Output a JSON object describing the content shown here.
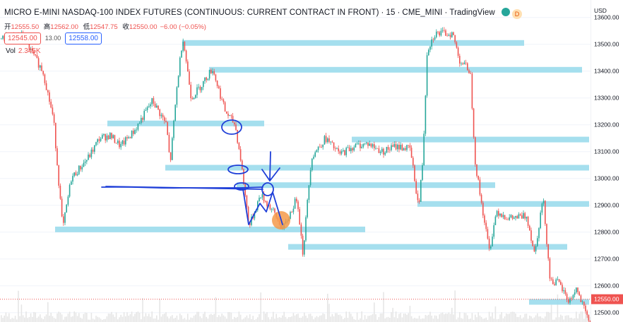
{
  "header": {
    "symbol_name": "MICRO E-MINI NASDAQ-100 INDEX FUTURES (CONTINUOUS: CURRENT CONTRACT IN FRONT)",
    "interval": "15",
    "exchange": "CME_MINI",
    "source": "TradingView",
    "status_badge": "D"
  },
  "ohlc": {
    "open_label": "开",
    "open": "12555.50",
    "high_label": "高",
    "high": "12562.00",
    "low_label": "低",
    "low": "12547.75",
    "close_label": "收",
    "close": "12550.00",
    "change": "−6.00 (−0.05%)"
  },
  "quote": {
    "bid": "12545.00",
    "spread": "13.00",
    "ask": "12558.00"
  },
  "volume": {
    "label": "Vol",
    "value": "2.345K"
  },
  "colors": {
    "up": "#26a69a",
    "down": "#ef5350",
    "level_band": "#9bdcec",
    "pen": "#1f3fd8",
    "marker": "#f59a4a",
    "last_price": "#ef5350",
    "grid": "#f0f3fa",
    "volume": "#e6e6e6"
  },
  "chart_data": {
    "type": "candlestick",
    "y_axis": {
      "unit": "USD",
      "ticks": [
        13600,
        13500,
        13400,
        13300,
        13200,
        13100,
        13000,
        12900,
        12800,
        12700,
        12600,
        12500
      ],
      "tick_labels": [
        "13600.00",
        "13500.00",
        "13400.00",
        "13300.00",
        "13200.00",
        "13100.00",
        "13000.00",
        "12900.00",
        "12800.00",
        "12700.00",
        "12600.00",
        "12500.00"
      ],
      "range": [
        12465,
        13665
      ],
      "position": "right"
    },
    "last_price": {
      "value": 12550,
      "label": "12550.00"
    },
    "price_path": [
      [
        0,
        13520
      ],
      [
        30,
        13530
      ],
      [
        60,
        13400
      ],
      [
        75,
        13220
      ],
      [
        88,
        12810
      ],
      [
        100,
        13000
      ],
      [
        125,
        13080
      ],
      [
        140,
        13150
      ],
      [
        155,
        13160
      ],
      [
        170,
        13120
      ],
      [
        190,
        13180
      ],
      [
        215,
        13290
      ],
      [
        235,
        13200
      ],
      [
        240,
        13050
      ],
      [
        250,
        13350
      ],
      [
        258,
        13530
      ],
      [
        270,
        13300
      ],
      [
        285,
        13350
      ],
      [
        300,
        13410
      ],
      [
        318,
        13250
      ],
      [
        332,
        13200
      ],
      [
        340,
        13070
      ],
      [
        352,
        12820
      ],
      [
        368,
        12940
      ],
      [
        385,
        12880
      ],
      [
        400,
        12810
      ],
      [
        420,
        12930
      ],
      [
        428,
        12720
      ],
      [
        440,
        13080
      ],
      [
        460,
        13150
      ],
      [
        480,
        13090
      ],
      [
        500,
        13120
      ],
      [
        520,
        13130
      ],
      [
        540,
        13100
      ],
      [
        560,
        13120
      ],
      [
        580,
        13110
      ],
      [
        592,
        12890
      ],
      [
        598,
        13080
      ],
      [
        604,
        13480
      ],
      [
        615,
        13540
      ],
      [
        640,
        13540
      ],
      [
        650,
        13440
      ],
      [
        665,
        13400
      ],
      [
        672,
        13060
      ],
      [
        680,
        12920
      ],
      [
        692,
        12730
      ],
      [
        702,
        12880
      ],
      [
        720,
        12850
      ],
      [
        745,
        12860
      ],
      [
        756,
        12720
      ],
      [
        768,
        12930
      ],
      [
        778,
        12620
      ],
      [
        790,
        12610
      ],
      [
        805,
        12540
      ],
      [
        815,
        12590
      ],
      [
        832,
        12470
      ]
    ],
    "levels": [
      {
        "from_x": 258,
        "to_x": 742,
        "price": 13505
      },
      {
        "from_x": 296,
        "to_x": 824,
        "price": 13405
      },
      {
        "from_x": 152,
        "to_x": 374,
        "price": 13205
      },
      {
        "from_x": 498,
        "to_x": 834,
        "price": 13145
      },
      {
        "from_x": 234,
        "to_x": 834,
        "price": 13040
      },
      {
        "from_x": 335,
        "to_x": 701,
        "price": 12975
      },
      {
        "from_x": 591,
        "to_x": 834,
        "price": 12905
      },
      {
        "from_x": 78,
        "to_x": 517,
        "price": 12810
      },
      {
        "from_x": 408,
        "to_x": 803,
        "price": 12745
      },
      {
        "from_x": 749,
        "to_x": 834,
        "price": 12540
      }
    ]
  }
}
